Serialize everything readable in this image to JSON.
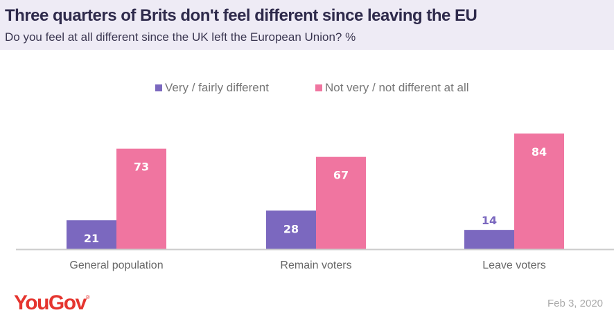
{
  "header": {
    "title": "Three quarters of Brits don't feel different since leaving the EU",
    "subtitle": "Do you feel at all different since the UK left the European Union? %"
  },
  "chart_data": {
    "type": "bar",
    "title": "Three quarters of Brits don't feel different since leaving the EU",
    "subtitle": "Do you feel at all different since the UK left the European Union? %",
    "categories": [
      "General population",
      "Remain voters",
      "Leave voters"
    ],
    "series": [
      {
        "name": "Very / fairly different",
        "color": "#7b68bf",
        "values": [
          21,
          28,
          14
        ]
      },
      {
        "name": "Not very / not different at all",
        "color": "#f075a0",
        "values": [
          73,
          67,
          84
        ]
      }
    ],
    "xlabel": "",
    "ylabel": "",
    "ylim": [
      0,
      100
    ],
    "grid": false,
    "legend": "top-center"
  },
  "footer": {
    "brand": "YouGov",
    "brand_mark": "®",
    "date": "Feb 3, 2020"
  }
}
